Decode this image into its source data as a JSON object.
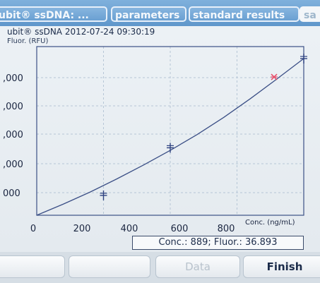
{
  "tabs": [
    {
      "label": "ubit® ssDNA: ..."
    },
    {
      "label": "parameters"
    },
    {
      "label": "standard results"
    },
    {
      "label": "sa"
    }
  ],
  "header": {
    "title": "ubit® ssDNA 2012-07-24 09:30:19",
    "y_axis_label": "Fluor. (RFU)"
  },
  "readout": "Conc.: 889; Fluor.: 36.893",
  "buttons": {
    "b1": "",
    "b2": "",
    "data": "Data",
    "finish": "Finish"
  },
  "colors": {
    "curve": "#3b4f86",
    "grid": "#b6c6d6",
    "sample_marker": "#e8506a",
    "standard_marker": "#2e4280",
    "tab_bar": "#6fa3d4"
  },
  "chart_data": {
    "type": "scatter",
    "x_label": "Conc. (ng/mL)",
    "y_label": "Fluor. (RFU)",
    "x_ticks": [
      "0",
      "200",
      "400",
      "600",
      "800"
    ],
    "y_ticks": [
      ",000",
      ",000",
      ",000",
      ",000",
      "000"
    ],
    "xlim": [
      0,
      1000
    ],
    "ylim": [
      0,
      45
    ],
    "grid": true,
    "standards": [
      {
        "x": 250,
        "y": 5.3
      },
      {
        "x": 500,
        "y": 18.0
      },
      {
        "x": 1000,
        "y": 41.8
      }
    ],
    "sample": {
      "x": 889,
      "y": 36.893
    },
    "fit_curve": [
      {
        "x": 0,
        "y": 0.0
      },
      {
        "x": 100,
        "y": 3.0
      },
      {
        "x": 200,
        "y": 6.2
      },
      {
        "x": 300,
        "y": 9.7
      },
      {
        "x": 400,
        "y": 13.4
      },
      {
        "x": 500,
        "y": 17.3
      },
      {
        "x": 600,
        "y": 21.5
      },
      {
        "x": 700,
        "y": 26.1
      },
      {
        "x": 800,
        "y": 31.1
      },
      {
        "x": 889,
        "y": 35.8
      },
      {
        "x": 1000,
        "y": 41.8
      }
    ]
  }
}
